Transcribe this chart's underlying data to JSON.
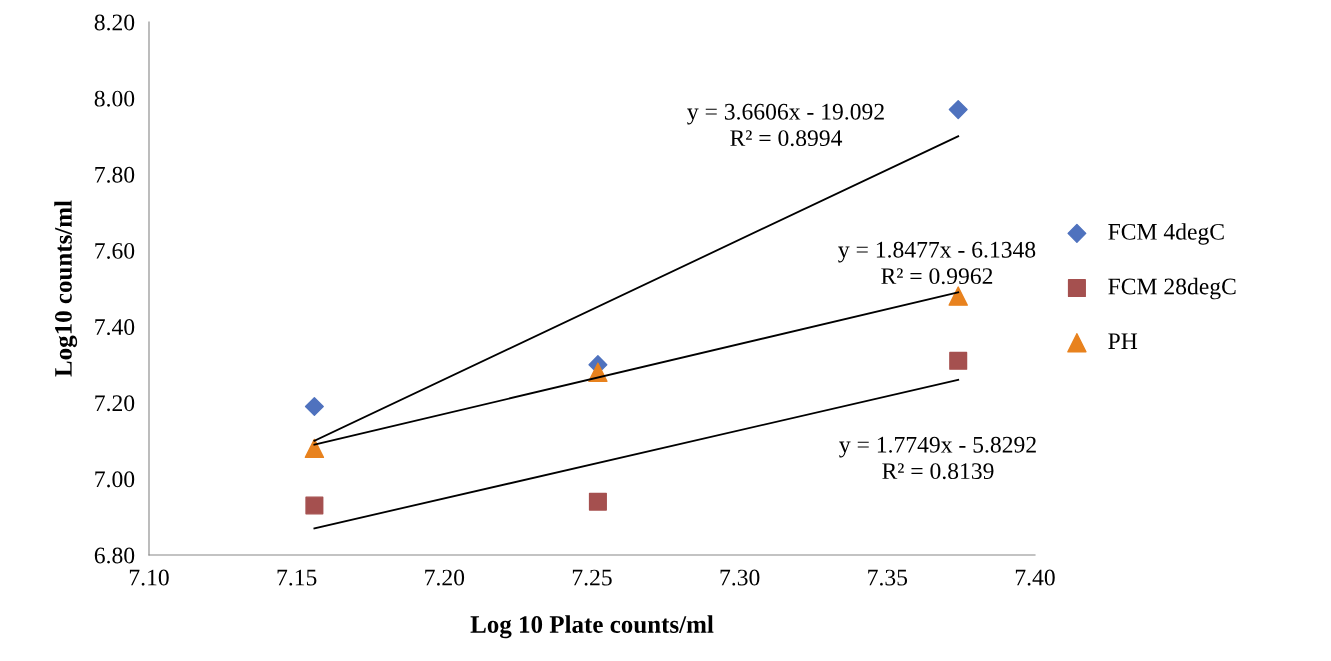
{
  "chart_data": {
    "type": "scatter",
    "xlabel": "Log 10 Plate counts/ml",
    "ylabel": "Log10 counts/ml",
    "xlim": [
      7.1,
      7.4
    ],
    "xticks": [
      {
        "value": 7.1,
        "label": "7.10"
      },
      {
        "value": 7.15,
        "label": "7.15"
      },
      {
        "value": 7.2,
        "label": "7.20"
      },
      {
        "value": 7.25,
        "label": "7.25"
      },
      {
        "value": 7.3,
        "label": "7.30"
      },
      {
        "value": 7.35,
        "label": "7.35"
      },
      {
        "value": 7.4,
        "label": "7.40"
      }
    ],
    "ylim": [
      6.8,
      8.2
    ],
    "yticks": [
      {
        "value": 6.8,
        "label": "6.80"
      },
      {
        "value": 7.0,
        "label": "7.00"
      },
      {
        "value": 7.2,
        "label": "7.20"
      },
      {
        "value": 7.4,
        "label": "7.40"
      },
      {
        "value": 7.6,
        "label": "7.60"
      },
      {
        "value": 7.8,
        "label": "7.80"
      },
      {
        "value": 8.0,
        "label": "8.00"
      },
      {
        "value": 8.2,
        "label": "8.20"
      }
    ],
    "grid": false,
    "legend": "right",
    "series": [
      {
        "name": "FCM 4degC",
        "color": "#4f72be",
        "marker": "diamond",
        "x": [
          7.156,
          7.252,
          7.374
        ],
        "values": [
          7.19,
          7.3,
          7.97
        ]
      },
      {
        "name": "FCM 28degC",
        "color": "#a5504f",
        "marker": "square",
        "x": [
          7.156,
          7.252,
          7.374
        ],
        "values": [
          6.93,
          6.94,
          7.31
        ]
      },
      {
        "name": "PH",
        "color": "#e8821e",
        "marker": "triangle",
        "x": [
          7.156,
          7.252,
          7.374
        ],
        "values": [
          7.08,
          7.28,
          7.48
        ]
      },
      {
        "type": "line",
        "color": "#000000",
        "x": [
          7.156,
          7.374
        ],
        "values": [
          7.1,
          7.9
        ]
      },
      {
        "type": "line",
        "color": "#000000",
        "x": [
          7.156,
          7.374
        ],
        "values": [
          7.09,
          7.49
        ]
      },
      {
        "type": "line",
        "color": "#000000",
        "x": [
          7.156,
          7.374
        ],
        "values": [
          6.87,
          7.26
        ]
      }
    ],
    "annotations": [
      "y = 3.6606x - 19.092\nR² = 0.8994",
      "y = 1.8477x - 6.1348\nR² = 0.9962",
      "y = 1.7749x - 5.8292\nR² = 0.8139"
    ]
  }
}
